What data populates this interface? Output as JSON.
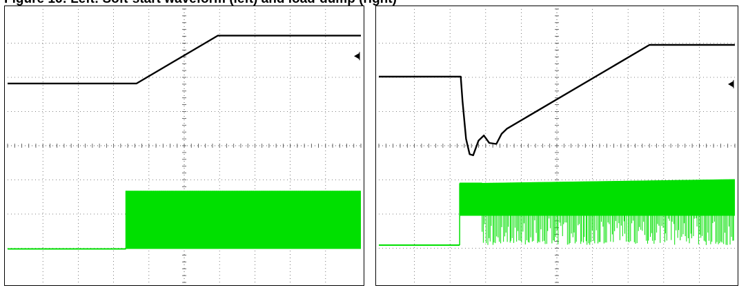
{
  "caption": "Figure 16: Left: Soft-start waveform (left) and load-dump (right)",
  "chart_data": [
    {
      "type": "line",
      "panel": "left",
      "x_divisions": 10,
      "y_divisions": 8,
      "grid": true,
      "marker": "arrow-left",
      "series": [
        {
          "color": "#000000",
          "style": "trace",
          "points": [
            [
              0,
              5.82
            ],
            [
              3.65,
              5.82
            ],
            [
              5.95,
              7.22
            ],
            [
              10,
              7.22
            ]
          ]
        },
        {
          "color": "#00e000",
          "style": "switching",
          "low": 0.98,
          "high": 2.68,
          "on_x": 3.35,
          "dropout": 1.6
        }
      ]
    },
    {
      "type": "line",
      "panel": "right",
      "x_divisions": 10,
      "y_divisions": 8,
      "grid": true,
      "marker": "arrow-left",
      "series": [
        {
          "color": "#000000",
          "style": "trace",
          "points": [
            [
              0,
              6.02
            ],
            [
              2.3,
              6.02
            ],
            [
              2.35,
              5.3
            ],
            [
              2.45,
              4.2
            ],
            [
              2.55,
              3.75
            ],
            [
              2.65,
              3.72
            ],
            [
              2.8,
              4.15
            ],
            [
              2.95,
              4.3
            ],
            [
              3.1,
              4.08
            ],
            [
              3.3,
              4.05
            ],
            [
              3.45,
              4.35
            ],
            [
              3.6,
              4.5
            ],
            [
              7.6,
              6.95
            ],
            [
              10,
              6.95
            ]
          ]
        },
        {
          "color": "#00e000",
          "style": "switching",
          "low": 1.09,
          "high_start": 2.9,
          "high_end": 3.02,
          "on_x": 2.27,
          "dropout_from": 2.9,
          "band_low": 1.09,
          "band_high": 1.95
        }
      ]
    }
  ]
}
